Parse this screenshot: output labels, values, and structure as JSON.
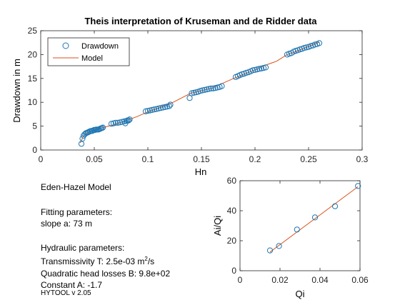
{
  "colors": {
    "marker": "#1f77b4",
    "model": "#d95319",
    "axis": "#262626",
    "frame": "#000000"
  },
  "chart_data": [
    {
      "type": "scatter",
      "title": "Theis interpretation of Kruseman and de Ridder data",
      "xlabel": "Hn",
      "ylabel": "Drawdown in m",
      "xlim": [
        0,
        0.3
      ],
      "ylim": [
        0,
        25
      ],
      "x_ticks": [
        "0",
        "0.05",
        "0.1",
        "0.15",
        "0.2",
        "0.25",
        "0.3"
      ],
      "y_ticks": [
        "0",
        "5",
        "10",
        "15",
        "20",
        "25"
      ],
      "legend_position": "top-left",
      "series": [
        {
          "name": "Drawdown",
          "style": "markers",
          "color": "#1f77b4",
          "x": [
            0.038,
            0.039,
            0.04,
            0.041,
            0.042,
            0.043,
            0.044,
            0.045,
            0.046,
            0.047,
            0.048,
            0.049,
            0.05,
            0.051,
            0.052,
            0.053,
            0.054,
            0.055,
            0.056,
            0.057,
            0.058,
            0.066,
            0.068,
            0.07,
            0.072,
            0.074,
            0.076,
            0.078,
            0.079,
            0.08,
            0.081,
            0.082,
            0.083,
            0.098,
            0.1,
            0.102,
            0.104,
            0.106,
            0.108,
            0.11,
            0.112,
            0.114,
            0.116,
            0.118,
            0.12,
            0.121,
            0.139,
            0.141,
            0.143,
            0.145,
            0.147,
            0.149,
            0.151,
            0.153,
            0.155,
            0.157,
            0.159,
            0.161,
            0.163,
            0.165,
            0.167,
            0.169,
            0.182,
            0.184,
            0.186,
            0.188,
            0.19,
            0.192,
            0.194,
            0.196,
            0.198,
            0.2,
            0.202,
            0.204,
            0.206,
            0.208,
            0.21,
            0.23,
            0.232,
            0.234,
            0.236,
            0.238,
            0.24,
            0.242,
            0.244,
            0.246,
            0.248,
            0.25,
            0.252,
            0.254,
            0.256,
            0.258,
            0.26
          ],
          "y": [
            1.3,
            2.4,
            3.0,
            3.3,
            3.5,
            3.6,
            3.7,
            3.8,
            3.9,
            4.0,
            4.0,
            4.1,
            4.2,
            4.2,
            4.3,
            4.3,
            4.3,
            4.4,
            4.5,
            4.6,
            4.7,
            5.5,
            5.6,
            5.7,
            5.7,
            5.8,
            5.9,
            6.0,
            5.6,
            6.1,
            6.2,
            6.2,
            6.4,
            8.1,
            8.2,
            8.3,
            8.4,
            8.5,
            8.6,
            8.7,
            8.8,
            8.9,
            9.0,
            9.1,
            9.2,
            9.5,
            10.9,
            11.9,
            12.0,
            12.1,
            12.2,
            12.4,
            12.5,
            12.6,
            12.7,
            12.8,
            12.9,
            12.9,
            13.0,
            13.1,
            13.2,
            13.4,
            15.3,
            15.5,
            15.7,
            15.9,
            16.0,
            16.2,
            16.3,
            16.5,
            16.7,
            16.8,
            16.9,
            17.0,
            17.1,
            17.2,
            17.3,
            20.0,
            20.2,
            20.3,
            20.6,
            20.8,
            20.9,
            21.1,
            21.2,
            21.4,
            21.5,
            21.6,
            21.8,
            21.9,
            22.1,
            22.2,
            22.4
          ]
        },
        {
          "name": "Model",
          "style": "line",
          "color": "#d95319",
          "x": [
            0.037,
            0.04,
            0.045,
            0.05,
            0.06,
            0.07,
            0.08,
            0.09,
            0.1,
            0.12,
            0.14,
            0.16,
            0.18,
            0.2,
            0.21,
            0.22,
            0.23,
            0.24,
            0.26
          ],
          "y": [
            1.5,
            3.0,
            3.8,
            4.2,
            4.8,
            5.4,
            6.2,
            7.0,
            8.0,
            9.6,
            11.9,
            13.0,
            15.0,
            16.8,
            17.8,
            18.6,
            20.0,
            20.8,
            22.6
          ]
        }
      ]
    },
    {
      "type": "scatter",
      "title": "",
      "xlabel": "Qi",
      "ylabel": "Ai/Qi",
      "xlim": [
        0,
        0.06
      ],
      "ylim": [
        0,
        60
      ],
      "x_ticks": [
        "0",
        "0.02",
        "0.04",
        "0.06"
      ],
      "y_ticks": [
        "0",
        "20",
        "40",
        "60"
      ],
      "series": [
        {
          "name": "",
          "style": "markers",
          "color": "#1f77b4",
          "x": [
            0.015,
            0.0195,
            0.0285,
            0.0375,
            0.0475,
            0.059
          ],
          "y": [
            13.5,
            16.5,
            27.5,
            35.5,
            43.0,
            56.5
          ]
        },
        {
          "name": "",
          "style": "line",
          "color": "#d95319",
          "x": [
            0.015,
            0.059
          ],
          "y": [
            12.5,
            56.0
          ]
        }
      ]
    }
  ],
  "info": {
    "model_name": "Eden-Hazel Model",
    "fitting_header": "Fitting parameters:",
    "slope": " slope a: 73 m",
    "hydraulic_header": "Hydraulic parameters:",
    "transmissivity_prefix": " Transmissivity T: 2.5e-03 m",
    "transmissivity_exp": "2",
    "transmissivity_suffix": "/s",
    "quadratic": " Quadratic head losses B: 9.8e+02",
    "constant": " Constant A: -1.7",
    "version": "HYTOOL v 2.05"
  }
}
